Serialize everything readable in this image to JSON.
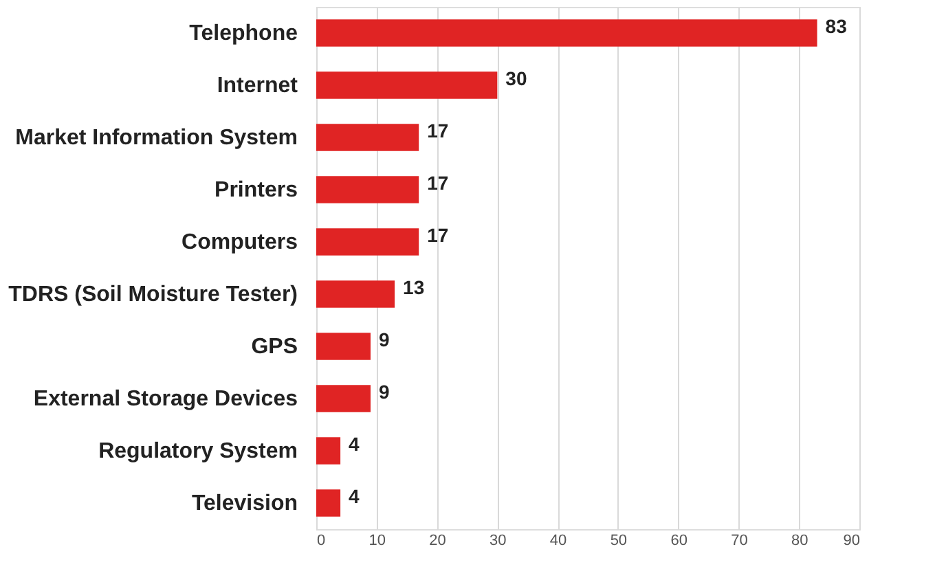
{
  "chart_data": {
    "type": "bar",
    "orientation": "horizontal",
    "categories": [
      "Telephone",
      "Internet",
      "Market Information System",
      "Printers",
      "Computers",
      "TDRS (Soil Moisture Tester)",
      "GPS",
      "External Storage Devices",
      "Regulatory System",
      "Television"
    ],
    "values": [
      83,
      30,
      17,
      17,
      17,
      13,
      9,
      9,
      4,
      4
    ],
    "color": "#e02424",
    "xlim": [
      0,
      90
    ],
    "xticks": [
      0,
      10,
      20,
      30,
      40,
      50,
      60,
      70,
      80,
      90
    ],
    "grid": "x",
    "data_labels": true
  }
}
